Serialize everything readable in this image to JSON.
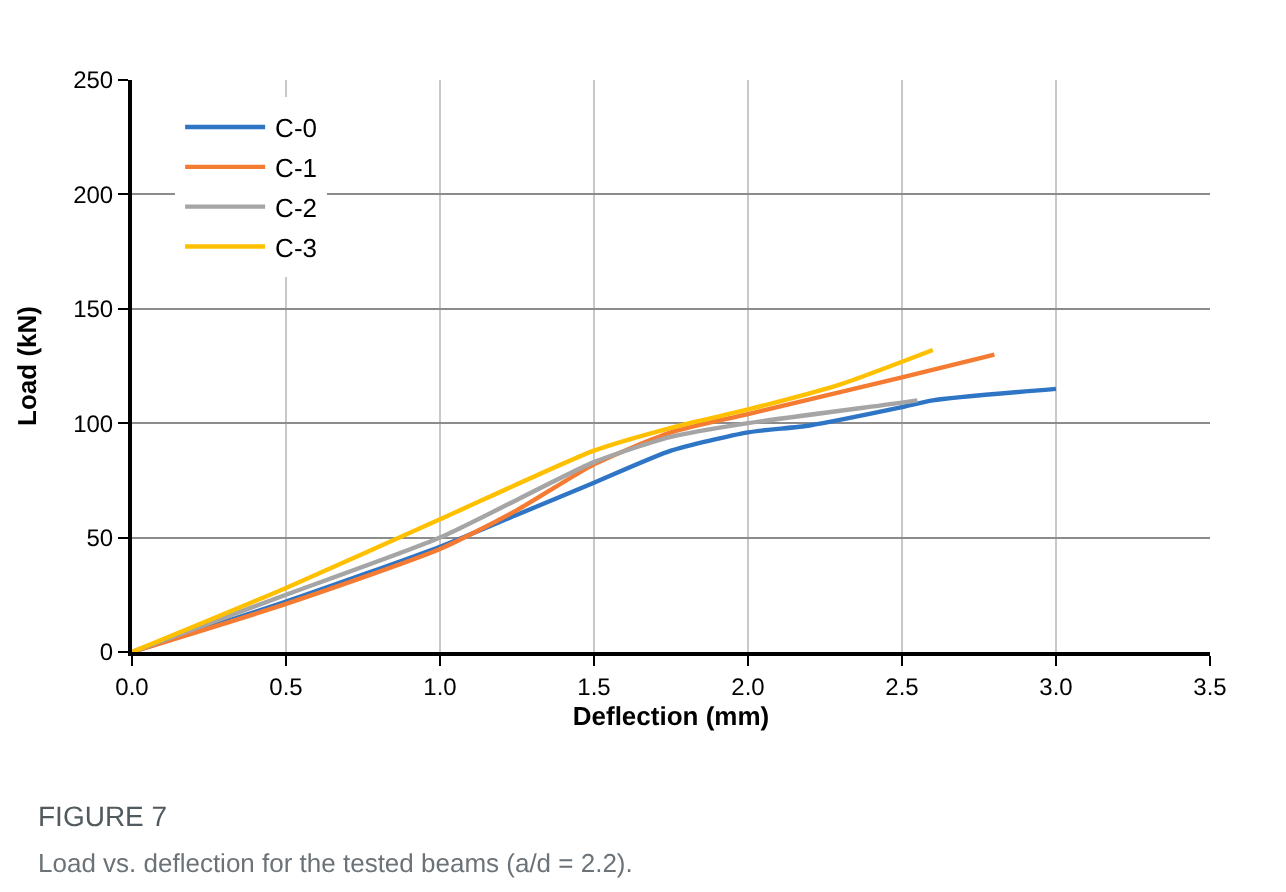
{
  "chart_data": {
    "type": "line",
    "xlabel": "Deflection (mm)",
    "ylabel": "Load (kN)",
    "xlim": [
      0,
      3.5
    ],
    "xticks": [
      {
        "value": 0,
        "label": "0.0"
      },
      0.5,
      {
        "value": 1,
        "label": "1.0"
      },
      1.5,
      {
        "value": 2,
        "label": "2.0"
      },
      2.5,
      {
        "value": 3,
        "label": "3.0"
      },
      3.5
    ],
    "ylim": [
      0,
      250
    ],
    "yticks": [
      0,
      50,
      100,
      150,
      200,
      250
    ],
    "grid": true,
    "legend": "top left",
    "marker": "none",
    "line_style": "solid",
    "series": [
      {
        "name": "C-0",
        "color": "#2e75c6",
        "x": [
          0,
          0.5,
          1,
          1.25,
          1.5,
          1.75,
          2,
          2.2,
          2.5,
          2.6,
          3
        ],
        "values": [
          0,
          22,
          46,
          60,
          74,
          88,
          96,
          99,
          107,
          110,
          115
        ]
      },
      {
        "name": "C-1",
        "color": "#f47b31",
        "x": [
          0,
          0.5,
          1,
          1.25,
          1.5,
          1.75,
          2,
          2.5,
          2.8
        ],
        "values": [
          0,
          21,
          45,
          62,
          82,
          96,
          104,
          120,
          130
        ]
      },
      {
        "name": "C-2",
        "color": "#a5a5a5",
        "x": [
          0,
          0.5,
          1,
          1.5,
          1.75,
          2,
          2.5,
          2.55
        ],
        "values": [
          0,
          25,
          50,
          83,
          94,
          100,
          109,
          110
        ]
      },
      {
        "name": "C-3",
        "color": "#ffc000",
        "x": [
          0,
          0.5,
          1,
          1.5,
          1.75,
          2,
          2.3,
          2.6
        ],
        "values": [
          0,
          28,
          58,
          88,
          98,
          106,
          117,
          132
        ]
      }
    ],
    "annotations": [
      "FIGURE 7",
      "Load vs. deflection for the tested beams (a/d = 2.2)."
    ]
  }
}
